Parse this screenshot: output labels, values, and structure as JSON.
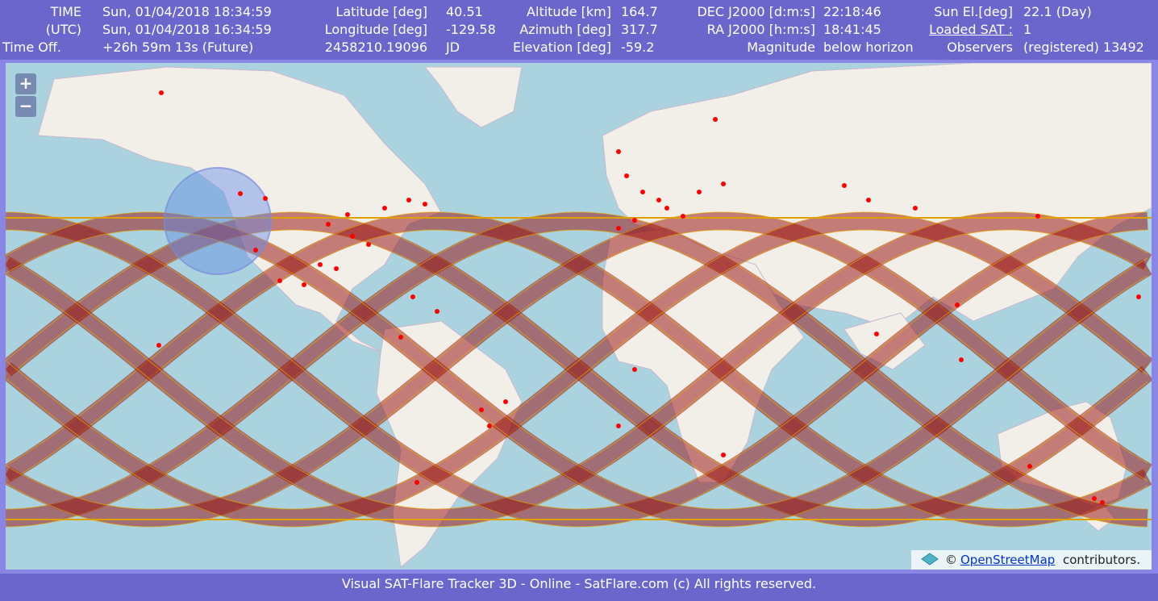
{
  "header": {
    "rows": [
      [
        "TIME",
        "Sun, 01/04/2018 18:34:59",
        "Latitude [deg]",
        "40.51",
        "Altitude [km]",
        "164.7",
        "DEC J2000 [d:m:s]",
        "22:18:46",
        "Sun El.[deg]",
        "22.1 (Day)"
      ],
      [
        "(UTC)",
        "Sun, 01/04/2018 16:34:59",
        "Longitude [deg]",
        "-129.58",
        "Azimuth [deg]",
        "317.7",
        "RA J2000 [h:m:s]",
        "18:41:45",
        "Loaded SAT :",
        "1"
      ],
      [
        "Time Off.",
        "+26h 59m 13s (Future)",
        "2458210.19096",
        "JD",
        "Elevation [deg]",
        "-59.2",
        "Magnitude",
        "below horizon",
        "Observers",
        "(registered) 13492"
      ]
    ]
  },
  "map": {
    "zoom_in": "+",
    "zoom_out": "−",
    "attribution_prefix": "©",
    "attribution_link": "OpenStreetMap",
    "attribution_suffix": "contributors."
  },
  "footer": {
    "text": "Visual SAT-Flare Tracker 3D - Online - SatFlare.com (c) All rights reserved."
  }
}
